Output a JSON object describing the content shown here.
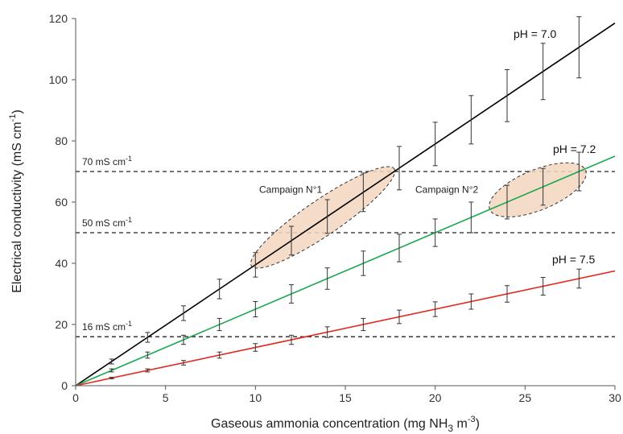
{
  "chart_data": {
    "type": "line",
    "xlabel": "Gaseous ammonia concentration (mg NH",
    "xlabel_sub": "3",
    "xlabel_mid": " m",
    "xlabel_sup": "-3",
    "xlabel_end": ")",
    "ylabel": "Electrical conductivity (mS cm",
    "ylabel_sup": "-1",
    "ylabel_end": ")",
    "xlim": [
      0,
      30
    ],
    "ylim": [
      0,
      120
    ],
    "x_ticks": [
      "0",
      "5",
      "10",
      "15",
      "20",
      "25",
      "30"
    ],
    "y_ticks": [
      "0",
      "20",
      "40",
      "60",
      "80",
      "100",
      "120"
    ],
    "grid": false,
    "series": [
      {
        "name": "pH = 7.0",
        "color": "#000000",
        "line": [
          [
            0,
            0
          ],
          [
            30,
            118.5
          ]
        ],
        "x": [
          2,
          4,
          6,
          8,
          10,
          12,
          14,
          16,
          18,
          20,
          22,
          24,
          26,
          28
        ],
        "y": [
          7.9,
          15.8,
          23.7,
          31.6,
          39.5,
          47.4,
          55.3,
          63.2,
          71.1,
          79,
          86.9,
          94.8,
          102.7,
          110.6
        ],
        "err": [
          0.8,
          1.6,
          2.4,
          3.2,
          4.0,
          4.7,
          5.5,
          6.3,
          7.1,
          7.1,
          7.9,
          8.5,
          9.2,
          10
        ]
      },
      {
        "name": "pH = 7.2",
        "color": "#1aa850",
        "line": [
          [
            0,
            0
          ],
          [
            30,
            75
          ]
        ],
        "x": [
          2,
          4,
          6,
          8,
          10,
          12,
          14,
          16,
          18,
          20,
          22,
          24,
          26,
          28
        ],
        "y": [
          5,
          10,
          15,
          20,
          25,
          30,
          35,
          40,
          45,
          50,
          55,
          60,
          65,
          70
        ],
        "err": [
          0.5,
          1.0,
          1.5,
          2.0,
          2.5,
          3.0,
          3.5,
          4.0,
          4.5,
          4.5,
          5.0,
          5.5,
          6.0,
          6.3
        ]
      },
      {
        "name": "pH = 7.5",
        "color": "#e02a1e",
        "line": [
          [
            0,
            0
          ],
          [
            30,
            37.5
          ]
        ],
        "x": [
          2,
          4,
          6,
          8,
          10,
          12,
          14,
          16,
          18,
          20,
          22,
          24,
          26,
          28
        ],
        "y": [
          2.5,
          5,
          7.5,
          10,
          12.5,
          15,
          17.5,
          20,
          22.5,
          25,
          27.5,
          30,
          32.5,
          35
        ],
        "err": [
          0.25,
          0.5,
          0.75,
          1.0,
          1.25,
          1.5,
          1.75,
          2.0,
          2.2,
          2.4,
          2.5,
          2.7,
          2.9,
          3.1
        ]
      }
    ],
    "thresholds": [
      {
        "y": 70,
        "label": "70 mS cm",
        "sup": "-1"
      },
      {
        "y": 50,
        "label": "50 mS cm",
        "sup": "-1"
      },
      {
        "y": 16,
        "label": "16 mS cm",
        "sup": "-1"
      }
    ],
    "campaigns": [
      {
        "label": "Campaign N°1",
        "x_range": [
          10,
          17.5
        ],
        "y_range": [
          40,
          70
        ],
        "fill": "#f3d6bf"
      },
      {
        "label": "Campaign N°2",
        "x_range": [
          23.2,
          28.2
        ],
        "y_range": [
          58,
          70
        ],
        "fill": "#f3d6bf"
      }
    ]
  }
}
